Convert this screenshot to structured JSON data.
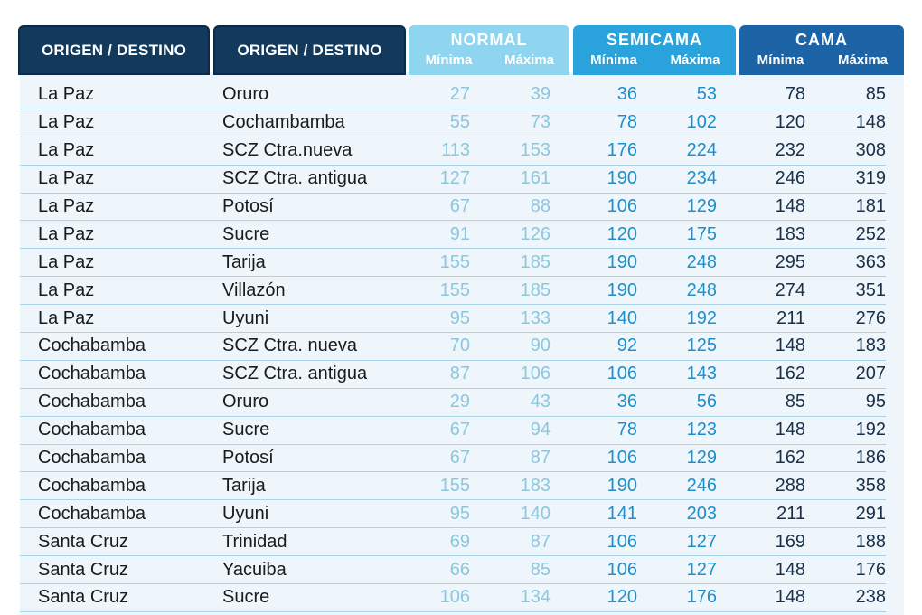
{
  "headers": {
    "origin": "ORIGEN / DESTINO",
    "destination": "ORIGEN / DESTINO",
    "normal": "NORMAL",
    "semicama": "SEMICAMA",
    "cama": "CAMA",
    "min": "Mínima",
    "max": "Máxima"
  },
  "rows": [
    {
      "origin": "La Paz",
      "destination": "Oruro",
      "normal_min": "27",
      "normal_max": "39",
      "semi_min": "36",
      "semi_max": "53",
      "cama_min": "78",
      "cama_max": "85"
    },
    {
      "origin": "La Paz",
      "destination": "Cochambamba",
      "normal_min": "55",
      "normal_max": "73",
      "semi_min": "78",
      "semi_max": "102",
      "cama_min": "120",
      "cama_max": "148"
    },
    {
      "origin": "La Paz",
      "destination": "SCZ Ctra.nueva",
      "normal_min": "113",
      "normal_max": "153",
      "semi_min": "176",
      "semi_max": "224",
      "cama_min": "232",
      "cama_max": "308"
    },
    {
      "origin": "La Paz",
      "destination": "SCZ Ctra. antigua",
      "normal_min": "127",
      "normal_max": "161",
      "semi_min": "190",
      "semi_max": "234",
      "cama_min": "246",
      "cama_max": "319"
    },
    {
      "origin": "La Paz",
      "destination": "Potosí",
      "normal_min": "67",
      "normal_max": "88",
      "semi_min": "106",
      "semi_max": "129",
      "cama_min": "148",
      "cama_max": "181"
    },
    {
      "origin": "La Paz",
      "destination": "Sucre",
      "normal_min": "91",
      "normal_max": "126",
      "semi_min": "120",
      "semi_max": "175",
      "cama_min": "183",
      "cama_max": "252"
    },
    {
      "origin": "La Paz",
      "destination": "Tarija",
      "normal_min": "155",
      "normal_max": "185",
      "semi_min": "190",
      "semi_max": "248",
      "cama_min": "295",
      "cama_max": "363"
    },
    {
      "origin": "La Paz",
      "destination": "Villazón",
      "normal_min": "155",
      "normal_max": "185",
      "semi_min": "190",
      "semi_max": "248",
      "cama_min": "274",
      "cama_max": "351"
    },
    {
      "origin": "La Paz",
      "destination": "Uyuni",
      "normal_min": "95",
      "normal_max": "133",
      "semi_min": "140",
      "semi_max": "192",
      "cama_min": "211",
      "cama_max": "276"
    },
    {
      "origin": "Cochabamba",
      "destination": "SCZ Ctra. nueva",
      "normal_min": "70",
      "normal_max": "90",
      "semi_min": "92",
      "semi_max": "125",
      "cama_min": "148",
      "cama_max": "183"
    },
    {
      "origin": "Cochabamba",
      "destination": "SCZ Ctra. antigua",
      "normal_min": "87",
      "normal_max": "106",
      "semi_min": "106",
      "semi_max": "143",
      "cama_min": "162",
      "cama_max": "207"
    },
    {
      "origin": "Cochabamba",
      "destination": "Oruro",
      "normal_min": "29",
      "normal_max": "43",
      "semi_min": "36",
      "semi_max": "56",
      "cama_min": "85",
      "cama_max": "95"
    },
    {
      "origin": "Cochabamba",
      "destination": "Sucre",
      "normal_min": "67",
      "normal_max": "94",
      "semi_min": "78",
      "semi_max": "123",
      "cama_min": "148",
      "cama_max": "192"
    },
    {
      "origin": "Cochabamba",
      "destination": "Potosí",
      "normal_min": "67",
      "normal_max": "87",
      "semi_min": "106",
      "semi_max": "129",
      "cama_min": "162",
      "cama_max": "186"
    },
    {
      "origin": "Cochabamba",
      "destination": "Tarija",
      "normal_min": "155",
      "normal_max": "183",
      "semi_min": "190",
      "semi_max": "246",
      "cama_min": "288",
      "cama_max": "358"
    },
    {
      "origin": "Cochabamba",
      "destination": "Uyuni",
      "normal_min": "95",
      "normal_max": "140",
      "semi_min": "141",
      "semi_max": "203",
      "cama_min": "211",
      "cama_max": "291"
    },
    {
      "origin": "Santa Cruz",
      "destination": "Trinidad",
      "normal_min": "69",
      "normal_max": "87",
      "semi_min": "106",
      "semi_max": "127",
      "cama_min": "169",
      "cama_max": "188"
    },
    {
      "origin": "Santa Cruz",
      "destination": "Yacuiba",
      "normal_min": "66",
      "normal_max": "85",
      "semi_min": "106",
      "semi_max": "127",
      "cama_min": "148",
      "cama_max": "176"
    },
    {
      "origin": "Santa Cruz",
      "destination": "Sucre",
      "normal_min": "106",
      "normal_max": "134",
      "semi_min": "120",
      "semi_max": "176",
      "cama_min": "148",
      "cama_max": "238"
    }
  ]
}
